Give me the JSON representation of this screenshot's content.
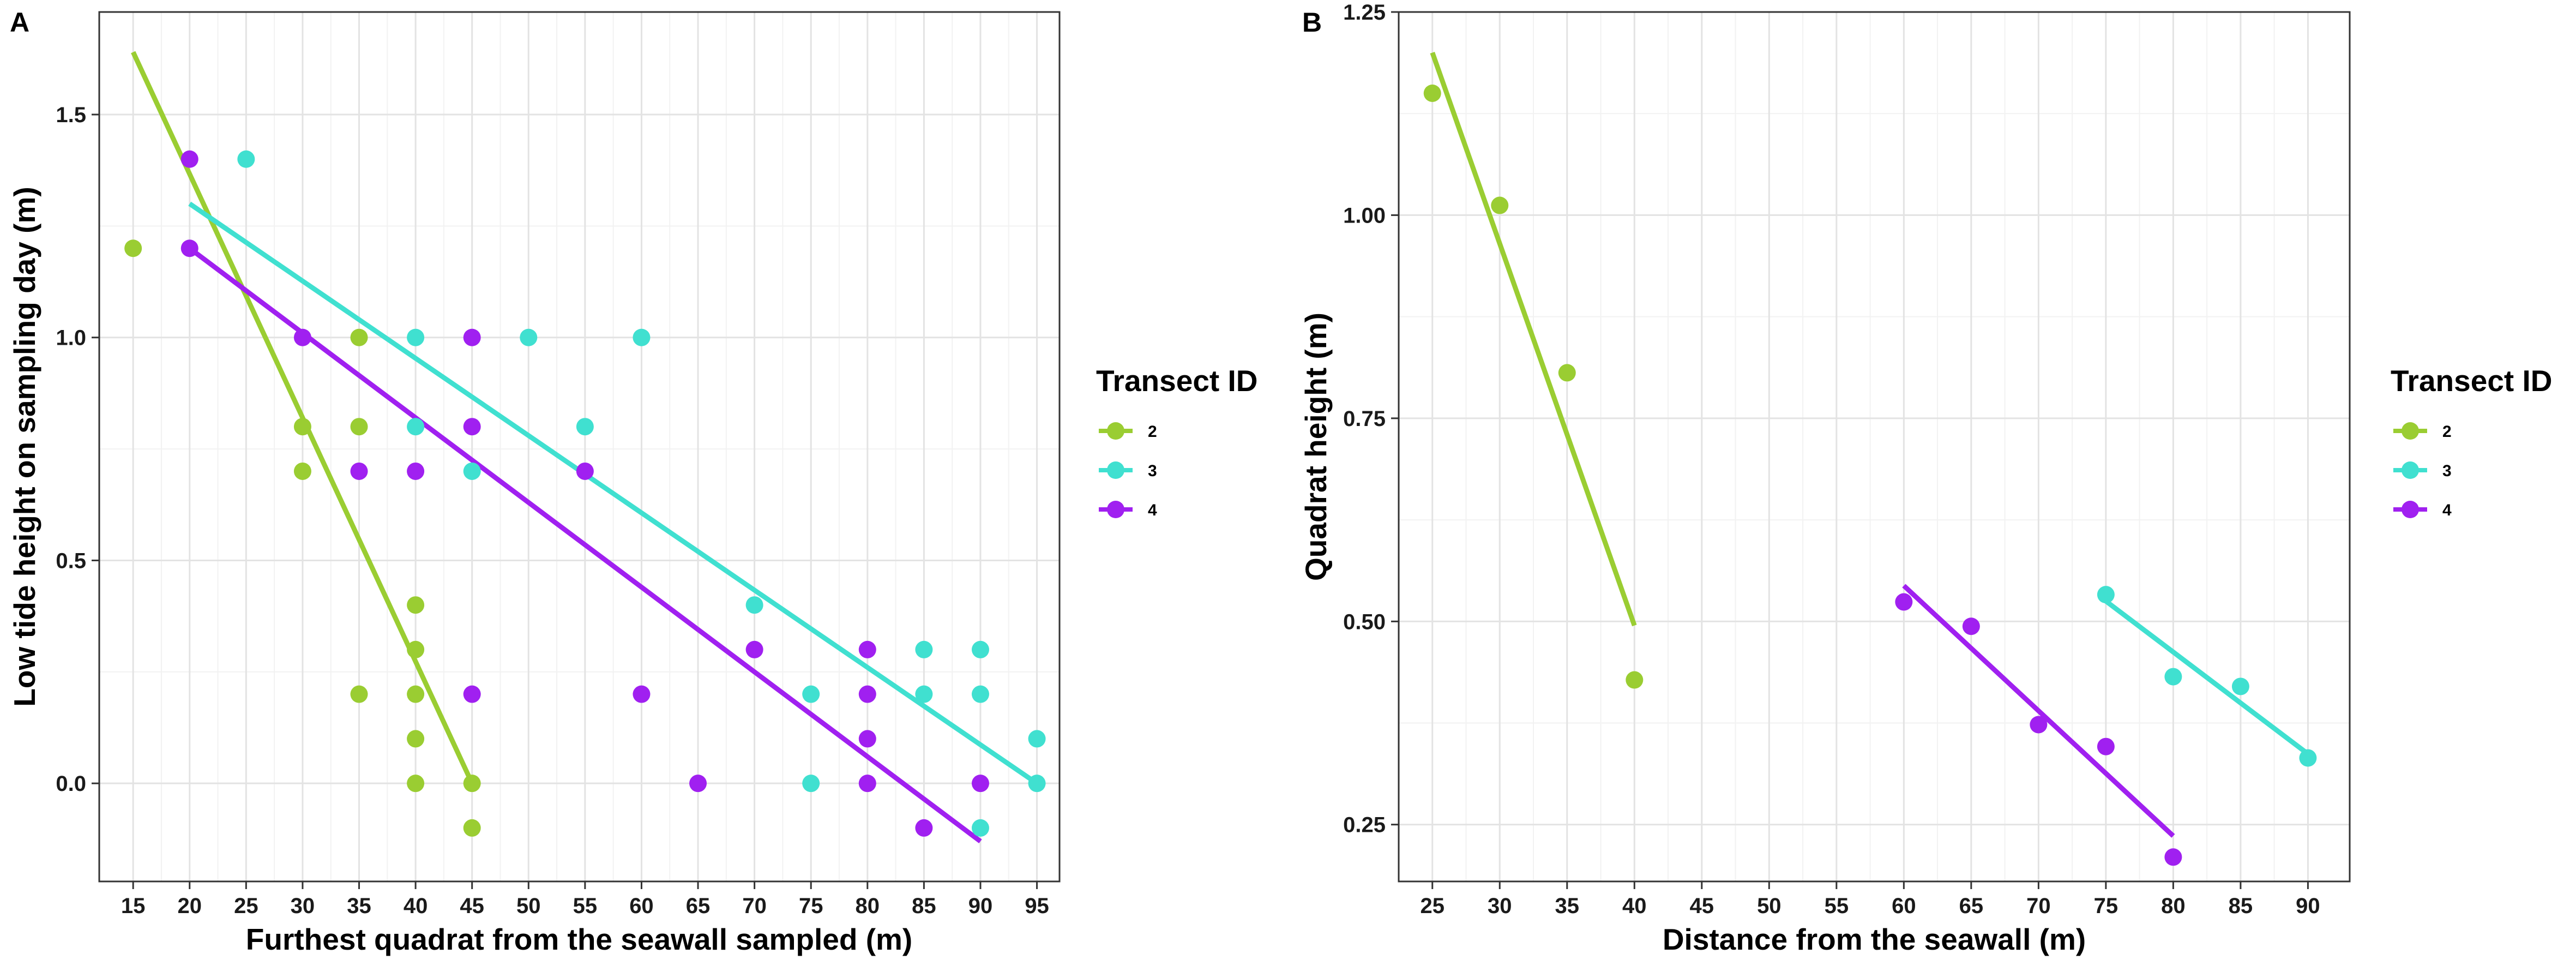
{
  "figure": {
    "panels": [
      {
        "letter": "A",
        "xlabel": "Furthest quadrat from the seawall sampled (m)",
        "ylabel": "Low tide height on sampling day (m)",
        "legend_title": "Transect ID"
      },
      {
        "letter": "B",
        "xlabel": "Distance from the seawall (m)",
        "ylabel": "Quadrat height (m)",
        "legend_title": "Transect ID"
      }
    ]
  },
  "chart_data": [
    {
      "type": "scatter",
      "panel": "A",
      "title": "",
      "xlabel": "Furthest quadrat from the seawall sampled (m)",
      "ylabel": "Low tide height on sampling day (m)",
      "xlim": [
        12,
        97
      ],
      "ylim": [
        -0.22,
        1.73
      ],
      "xticks": [
        15,
        20,
        25,
        30,
        35,
        40,
        45,
        50,
        55,
        60,
        65,
        70,
        75,
        80,
        85,
        90,
        95
      ],
      "yticks": [
        0.0,
        0.5,
        1.0,
        1.5
      ],
      "ytick_labels": [
        "0.0",
        "0.5",
        "1.0",
        "1.5"
      ],
      "grid": true,
      "legend_position": "right",
      "series": [
        {
          "name": "2",
          "color": "#9ACD32",
          "points": [
            [
              15,
              1.2
            ],
            [
              30,
              0.8
            ],
            [
              30,
              0.7
            ],
            [
              35,
              1.0
            ],
            [
              35,
              0.8
            ],
            [
              35,
              0.2
            ],
            [
              40,
              0.4
            ],
            [
              40,
              0.3
            ],
            [
              40,
              0.2
            ],
            [
              40,
              0.1
            ],
            [
              40,
              0.0
            ],
            [
              45,
              0.0
            ],
            [
              45,
              -0.1
            ]
          ],
          "fit": [
            [
              15,
              1.64
            ],
            [
              45,
              0.0
            ]
          ]
        },
        {
          "name": "3",
          "color": "#40E0D0",
          "points": [
            [
              25,
              1.4
            ],
            [
              40,
              1.0
            ],
            [
              40,
              0.8
            ],
            [
              45,
              0.7
            ],
            [
              50,
              1.0
            ],
            [
              55,
              0.8
            ],
            [
              60,
              1.0
            ],
            [
              70,
              0.4
            ],
            [
              75,
              0.2
            ],
            [
              75,
              0.0
            ],
            [
              85,
              0.3
            ],
            [
              85,
              0.2
            ],
            [
              90,
              0.3
            ],
            [
              90,
              0.2
            ],
            [
              90,
              -0.1
            ],
            [
              95,
              0.1
            ],
            [
              95,
              0.0
            ]
          ],
          "fit": [
            [
              20,
              1.3
            ],
            [
              95,
              0.0
            ]
          ]
        },
        {
          "name": "4",
          "color": "#A020F0",
          "points": [
            [
              20,
              1.4
            ],
            [
              20,
              1.2
            ],
            [
              30,
              1.0
            ],
            [
              35,
              0.7
            ],
            [
              40,
              0.7
            ],
            [
              45,
              1.0
            ],
            [
              45,
              0.8
            ],
            [
              45,
              0.2
            ],
            [
              55,
              0.7
            ],
            [
              60,
              0.2
            ],
            [
              65,
              0.0
            ],
            [
              70,
              0.3
            ],
            [
              80,
              0.3
            ],
            [
              80,
              0.2
            ],
            [
              80,
              0.1
            ],
            [
              80,
              0.0
            ],
            [
              85,
              -0.1
            ],
            [
              90,
              0.0
            ]
          ],
          "fit": [
            [
              20,
              1.2
            ],
            [
              90,
              -0.13
            ]
          ]
        }
      ]
    },
    {
      "type": "scatter",
      "panel": "B",
      "title": "",
      "xlabel": "Distance from the seawall (m)",
      "ylabel": "Quadrat height (m)",
      "xlim": [
        22.5,
        93.1
      ],
      "ylim": [
        0.18,
        1.25
      ],
      "xticks": [
        25,
        30,
        35,
        40,
        45,
        50,
        55,
        60,
        65,
        70,
        75,
        80,
        85,
        90
      ],
      "yticks": [
        0.25,
        0.5,
        0.75,
        1.0,
        1.25
      ],
      "ytick_labels": [
        "0.25",
        "0.50",
        "0.75",
        "1.00",
        "1.25"
      ],
      "grid": true,
      "legend_position": "right",
      "series": [
        {
          "name": "2",
          "color": "#9ACD32",
          "points": [
            [
              25,
              1.15
            ],
            [
              30,
              1.012
            ],
            [
              35,
              0.806
            ],
            [
              40,
              0.428
            ]
          ],
          "fit": [
            [
              25,
              1.2
            ],
            [
              40,
              0.495
            ]
          ]
        },
        {
          "name": "3",
          "color": "#40E0D0",
          "points": [
            [
              75,
              0.533
            ],
            [
              80,
              0.432
            ],
            [
              85,
              0.42
            ],
            [
              90,
              0.332
            ]
          ],
          "fit": [
            [
              75,
              0.525
            ],
            [
              90,
              0.337
            ]
          ]
        },
        {
          "name": "4",
          "color": "#A020F0",
          "points": [
            [
              60,
              0.524
            ],
            [
              65,
              0.494
            ],
            [
              70,
              0.373
            ],
            [
              75,
              0.346
            ],
            [
              80,
              0.21
            ]
          ],
          "fit": [
            [
              60,
              0.544
            ],
            [
              80,
              0.236
            ]
          ]
        }
      ]
    }
  ]
}
